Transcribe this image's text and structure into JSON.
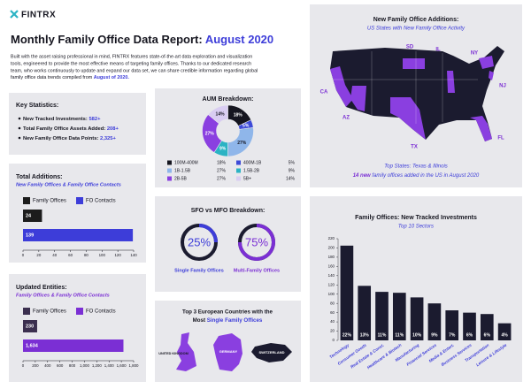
{
  "header": {
    "logo": "FINTRX",
    "title": "Monthly Family Office Data Report: ",
    "title_date": "August 2020",
    "intro_lines": [
      "Built with the asset raising professional in mind, FINTRX features state-of-the-art data exploration and visualization",
      "tools, engineered to provide the most effective means of targeting family offices. Thanks to our dedicated research",
      "team, who works continuously to update and expand our data set, we can share credible information regarding global"
    ],
    "intro_last": "family office data trends compiled from ",
    "intro_date": "August of 2020."
  },
  "key_stats": {
    "title": "Key Statistics:",
    "items": [
      {
        "label": "New Tracked Investments: ",
        "value": "582+"
      },
      {
        "label": "Total Family Office Assets Added: ",
        "value": "208+"
      },
      {
        "label": "New Family Office Data Points: ",
        "value": "2,325+"
      }
    ]
  },
  "map": {
    "title": "New Family Office Additions:",
    "subtitle": "US States with New Family Office Activity",
    "states": [
      "SD",
      "IL",
      "NY",
      "NJ",
      "CA",
      "AZ",
      "TX",
      "FL"
    ],
    "footer": "Top States: Texas & Illinois",
    "note_count": "14 new",
    "note_rest": " family offices added in the US in August 2020"
  },
  "europe": {
    "title_line1": "Top 3 European Countries with the",
    "title_lead": "Most ",
    "title_highlight": "Single Family Offices",
    "countries": [
      "UNITED KINGDOM",
      "GERMANY",
      "SWITZERLAND"
    ]
  },
  "chart_data": [
    {
      "type": "donut",
      "title": "AUM Breakdown:",
      "categories": [
        "100M-400M",
        "400M-1B",
        "1B-1.5B",
        "1.5B-2B",
        "2B-5B",
        "5B+"
      ],
      "values": [
        18,
        5,
        27,
        9,
        27,
        14
      ],
      "value_labels": [
        "18%",
        "5%",
        "27%",
        "9%",
        "27%",
        "14%"
      ],
      "colors": [
        "#15151f",
        "#3d4ad8",
        "#8fb6ea",
        "#2bb3c4",
        "#8a3fe0",
        "#d9cdf2"
      ]
    },
    {
      "type": "hbar",
      "title": "Total Additions:",
      "subtitle": "New Family Offices & Family Office Contacts",
      "subtitle_color": "#3d3dd9",
      "series": [
        {
          "name": "Family Offices",
          "color": "#1c1c1c",
          "values": [
            24
          ]
        },
        {
          "name": "FO Contacts",
          "color": "#3d3dd9",
          "values": [
            139
          ]
        }
      ],
      "xlim": [
        0,
        140
      ],
      "xticks": [
        0,
        20,
        40,
        60,
        80,
        100,
        120,
        140
      ]
    },
    {
      "type": "ring",
      "title": "SFO vs MFO Breakdown:",
      "categories": [
        "Single Family Offices",
        "Multi-Family Offices"
      ],
      "values": [
        25,
        75
      ],
      "value_labels": [
        "25%",
        "75%"
      ],
      "colors": [
        "#3d3dd9",
        "#7b2fd4"
      ]
    },
    {
      "type": "hbar",
      "title": "Updated Entities:",
      "subtitle": "Family Offices & Family Office Contacts",
      "subtitle_color": "#7b2fd4",
      "series": [
        {
          "name": "Family Offices",
          "color": "#3b2f4f",
          "values": [
            230
          ]
        },
        {
          "name": "FO Contacts",
          "color": "#7b2fd4",
          "values": [
            1634
          ],
          "value_labels": [
            "1,634"
          ]
        }
      ],
      "xlim": [
        0,
        1800
      ],
      "xticks": [
        0,
        200,
        400,
        600,
        800,
        {
          "value": 1000,
          "label": "1,000"
        },
        {
          "value": 1200,
          "label": "1,200"
        },
        {
          "value": 1400,
          "label": "1,400"
        },
        {
          "value": 1600,
          "label": "1,600"
        },
        {
          "value": 1800,
          "label": "1,800"
        }
      ]
    },
    {
      "type": "bar",
      "title": "Family Offices: New Tracked Investments",
      "subtitle": "Top 10 Sectors",
      "categories": [
        "Technology",
        "Consumer Goods",
        "Real Estate & Const.",
        "Healthcare & Biotech",
        "Manufacturing",
        "Financial Services",
        "Media & Entert.",
        "Business Services",
        "Transportation",
        "Leisure & Lifestyle"
      ],
      "values": [
        205,
        118,
        105,
        103,
        93,
        80,
        65,
        60,
        57,
        37
      ],
      "annotations": [
        "22%",
        "13%",
        "11%",
        "11%",
        "10%",
        "9%",
        "7%",
        "6%",
        "6%",
        "4%"
      ],
      "color": "#1b1b2f",
      "ylim": [
        0,
        220
      ],
      "yticks": [
        0,
        20,
        40,
        60,
        80,
        100,
        120,
        140,
        160,
        180,
        200,
        220
      ]
    }
  ]
}
